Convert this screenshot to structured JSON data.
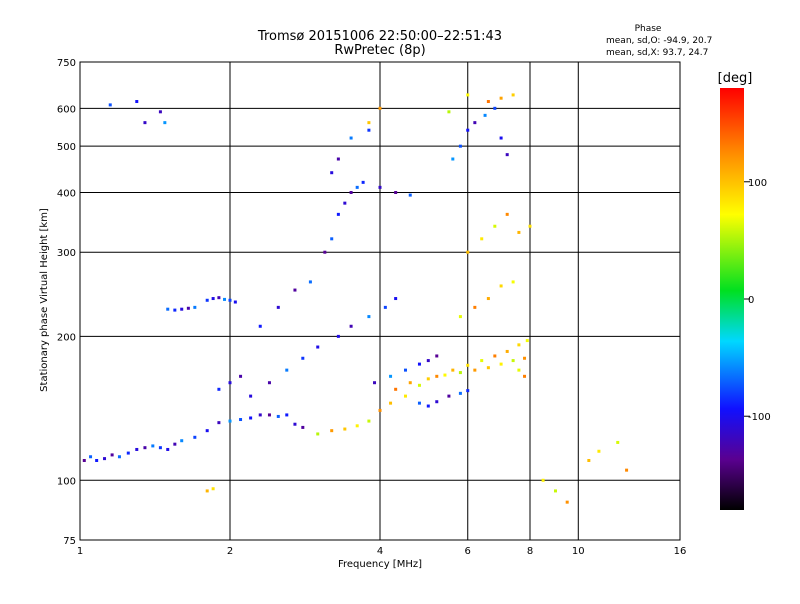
{
  "chart_data": {
    "type": "scatter",
    "title": "Tromsø 20151006 22:50:00–22:51:43",
    "subtitle": "RwPretec (8p)",
    "xlabel": "Frequency [MHz]",
    "ylabel": "Stationary phase Virtual Height [km]",
    "x_scale": "log",
    "y_scale": "log",
    "xlim": [
      1,
      16
    ],
    "ylim": [
      75,
      750
    ],
    "x_ticks": [
      "1",
      "2",
      "4",
      "6",
      "8",
      "10",
      "16"
    ],
    "x_tick_values": [
      1,
      2,
      4,
      6,
      8,
      10,
      16
    ],
    "y_ticks": [
      "75",
      "100",
      "200",
      "300",
      "400",
      "500",
      "600",
      "750"
    ],
    "y_tick_values": [
      75,
      100,
      200,
      300,
      400,
      500,
      600,
      750
    ],
    "grid": true,
    "phase_info": {
      "title": "Phase",
      "line_o": "mean, sd,O: -94.9, 20.7",
      "line_x": "mean, sd,X:  93.7, 24.7"
    },
    "colorbar": {
      "label": "[deg]",
      "ticks": [
        "100",
        "0",
        "-100"
      ],
      "tick_values": [
        100,
        0,
        -100
      ],
      "range": [
        -180,
        180
      ],
      "colormap": "rainbow (black-purple-blue-cyan-green-yellow-orange-red)"
    },
    "series": [
      {
        "description": "O-mode traces (phase near -95 deg)",
        "points": [
          [
            1.02,
            110
          ],
          [
            1.05,
            112
          ],
          [
            1.08,
            110
          ],
          [
            1.12,
            111
          ],
          [
            1.16,
            113
          ],
          [
            1.2,
            112
          ],
          [
            1.25,
            114
          ],
          [
            1.3,
            116
          ],
          [
            1.35,
            117
          ],
          [
            1.4,
            118
          ],
          [
            1.45,
            117
          ],
          [
            1.5,
            116
          ],
          [
            1.55,
            119
          ],
          [
            1.6,
            121
          ],
          [
            1.7,
            123
          ],
          [
            1.8,
            127
          ],
          [
            1.9,
            132
          ],
          [
            2.0,
            133
          ],
          [
            2.1,
            134
          ],
          [
            2.2,
            135
          ],
          [
            2.3,
            137
          ],
          [
            2.4,
            137
          ],
          [
            2.5,
            136
          ],
          [
            2.6,
            137
          ],
          [
            2.7,
            131
          ],
          [
            2.8,
            129
          ],
          [
            1.5,
            228
          ],
          [
            1.55,
            227
          ],
          [
            1.6,
            228
          ],
          [
            1.65,
            229
          ],
          [
            1.7,
            230
          ],
          [
            1.8,
            238
          ],
          [
            1.85,
            240
          ],
          [
            1.9,
            241
          ],
          [
            1.95,
            239
          ],
          [
            2.0,
            238
          ],
          [
            2.05,
            236
          ],
          [
            1.45,
            590
          ],
          [
            1.48,
            560
          ],
          [
            1.15,
            610
          ],
          [
            1.3,
            620
          ],
          [
            1.35,
            560
          ],
          [
            3.1,
            300
          ],
          [
            3.2,
            320
          ],
          [
            3.3,
            360
          ],
          [
            3.4,
            380
          ],
          [
            3.5,
            400
          ],
          [
            3.6,
            410
          ],
          [
            3.7,
            420
          ],
          [
            3.2,
            440
          ],
          [
            3.3,
            470
          ],
          [
            3.5,
            520
          ],
          [
            3.8,
            540
          ],
          [
            3.3,
            200
          ],
          [
            3.5,
            210
          ],
          [
            3.8,
            220
          ],
          [
            4.1,
            230
          ],
          [
            4.3,
            240
          ],
          [
            3.9,
            160
          ],
          [
            4.2,
            165
          ],
          [
            4.5,
            170
          ],
          [
            4.8,
            175
          ],
          [
            5.0,
            178
          ],
          [
            5.2,
            182
          ],
          [
            4.8,
            145
          ],
          [
            5.0,
            143
          ],
          [
            5.2,
            146
          ],
          [
            5.5,
            150
          ],
          [
            5.8,
            152
          ],
          [
            6.0,
            154
          ],
          [
            2.2,
            150
          ],
          [
            2.4,
            160
          ],
          [
            2.6,
            170
          ],
          [
            2.8,
            180
          ],
          [
            3.0,
            190
          ],
          [
            6.2,
            560
          ],
          [
            6.5,
            580
          ],
          [
            6.8,
            600
          ],
          [
            7.0,
            520
          ],
          [
            7.2,
            480
          ],
          [
            5.6,
            470
          ],
          [
            5.8,
            500
          ],
          [
            6.0,
            540
          ],
          [
            4.0,
            410
          ],
          [
            4.3,
            400
          ],
          [
            4.6,
            395
          ],
          [
            2.3,
            210
          ],
          [
            2.5,
            230
          ],
          [
            2.7,
            250
          ],
          [
            2.9,
            260
          ],
          [
            1.9,
            155
          ],
          [
            2.0,
            160
          ],
          [
            2.1,
            165
          ]
        ]
      },
      {
        "description": "X-mode traces (phase near +94 deg)",
        "points": [
          [
            3.0,
            125
          ],
          [
            3.2,
            127
          ],
          [
            3.4,
            128
          ],
          [
            3.6,
            130
          ],
          [
            3.8,
            133
          ],
          [
            4.0,
            140
          ],
          [
            4.2,
            145
          ],
          [
            4.5,
            150
          ],
          [
            4.8,
            158
          ],
          [
            5.2,
            165
          ],
          [
            5.6,
            170
          ],
          [
            6.0,
            174
          ],
          [
            6.4,
            178
          ],
          [
            6.8,
            182
          ],
          [
            7.2,
            186
          ],
          [
            7.6,
            192
          ],
          [
            7.9,
            196
          ],
          [
            4.3,
            155
          ],
          [
            4.6,
            160
          ],
          [
            5.0,
            163
          ],
          [
            5.4,
            166
          ],
          [
            5.8,
            168
          ],
          [
            6.2,
            170
          ],
          [
            6.6,
            172
          ],
          [
            7.0,
            175
          ],
          [
            7.4,
            178
          ],
          [
            7.8,
            180
          ],
          [
            6.0,
            300
          ],
          [
            6.4,
            320
          ],
          [
            6.8,
            340
          ],
          [
            7.2,
            360
          ],
          [
            7.6,
            330
          ],
          [
            8.0,
            340
          ],
          [
            5.8,
            220
          ],
          [
            6.2,
            230
          ],
          [
            6.6,
            240
          ],
          [
            7.0,
            255
          ],
          [
            7.4,
            260
          ],
          [
            6.6,
            620
          ],
          [
            7.0,
            630
          ],
          [
            7.4,
            640
          ],
          [
            6.0,
            640
          ],
          [
            5.5,
            590
          ],
          [
            4.0,
            600
          ],
          [
            3.8,
            560
          ],
          [
            8.5,
            100
          ],
          [
            9.0,
            95
          ],
          [
            9.5,
            90
          ],
          [
            10.5,
            110
          ],
          [
            11.0,
            115
          ],
          [
            12.0,
            120
          ],
          [
            12.5,
            105
          ],
          [
            1.8,
            95
          ],
          [
            1.85,
            96
          ],
          [
            7.6,
            170
          ],
          [
            7.8,
            165
          ]
        ]
      }
    ]
  }
}
